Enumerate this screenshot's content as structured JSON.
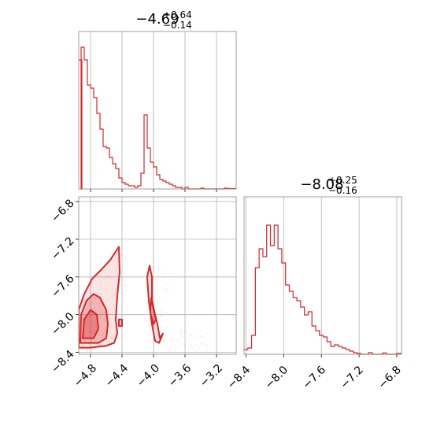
{
  "colors": {
    "accent": "#d62728",
    "grid": "#b0b0b0",
    "frame": "#888888"
  },
  "chart_data": [
    {
      "type": "histogram",
      "panel": "top-left",
      "title": {
        "median": "−4.69",
        "upper": "+0.64",
        "lower": "−0.14"
      },
      "xlim": [
        -4.95,
        -2.95
      ],
      "xticks": [
        -4.8,
        -4.4,
        -4.0,
        -3.6,
        -3.2
      ],
      "show_tick_labels": false,
      "grid": true,
      "bins": [
        [
          -4.95,
          0.82
        ],
        [
          -4.92,
          0.9
        ],
        [
          -4.88,
          0.82
        ],
        [
          -4.84,
          0.66
        ],
        [
          -4.8,
          0.64
        ],
        [
          -4.76,
          0.58
        ],
        [
          -4.72,
          0.48
        ],
        [
          -4.68,
          0.38
        ],
        [
          -4.64,
          0.27
        ],
        [
          -4.6,
          0.26
        ],
        [
          -4.56,
          0.2
        ],
        [
          -4.52,
          0.16
        ],
        [
          -4.48,
          0.13
        ],
        [
          -4.44,
          0.07
        ],
        [
          -4.4,
          0.04
        ],
        [
          -4.36,
          0.03
        ],
        [
          -4.32,
          0.02
        ],
        [
          -4.28,
          0.02
        ],
        [
          -4.24,
          0.01
        ],
        [
          -4.2,
          0.02
        ],
        [
          -4.16,
          0.1
        ],
        [
          -4.12,
          0.47
        ],
        [
          -4.08,
          0.26
        ],
        [
          -4.04,
          0.17
        ],
        [
          -4.0,
          0.14
        ],
        [
          -3.96,
          0.09
        ],
        [
          -3.92,
          0.06
        ],
        [
          -3.88,
          0.05
        ],
        [
          -3.84,
          0.04
        ],
        [
          -3.8,
          0.03
        ],
        [
          -3.76,
          0.02
        ],
        [
          -3.72,
          0.01
        ],
        [
          -3.68,
          0.01
        ],
        [
          -3.6,
          0.01
        ],
        [
          -3.4,
          0.005
        ],
        [
          -3.1,
          0.005
        ]
      ],
      "bin_width": 0.04
    },
    {
      "type": "contour",
      "panel": "bottom-left",
      "xlim": [
        -4.95,
        -2.95
      ],
      "ylim": [
        -8.42,
        -6.75
      ],
      "xticks": [
        -4.8,
        -4.4,
        -4.0,
        -3.6,
        -3.2
      ],
      "xtick_labels": [
        "−4.8",
        "−4.4",
        "−4.0",
        "−3.6",
        "−3.2"
      ],
      "yticks": [
        -6.8,
        -7.2,
        -7.6,
        -8.0,
        -8.4
      ],
      "ytick_labels": [
        "−6.8",
        "−7.2",
        "−7.6",
        "−8.0",
        "−8.4"
      ],
      "grid": true,
      "contours": [
        {
          "level": "outer",
          "polygon": [
            [
              -4.95,
              -8.35
            ],
            [
              -4.95,
              -7.95
            ],
            [
              -4.88,
              -7.78
            ],
            [
              -4.78,
              -7.62
            ],
            [
              -4.66,
              -7.52
            ],
            [
              -4.55,
              -7.42
            ],
            [
              -4.44,
              -7.28
            ],
            [
              -4.43,
              -7.55
            ],
            [
              -4.46,
              -7.8
            ],
            [
              -4.48,
              -8.05
            ],
            [
              -4.46,
              -8.2
            ],
            [
              -4.5,
              -8.3
            ],
            [
              -4.6,
              -8.33
            ],
            [
              -4.8,
              -8.35
            ]
          ]
        },
        {
          "level": "middle",
          "polygon": [
            [
              -4.93,
              -8.3
            ],
            [
              -4.92,
              -8.0
            ],
            [
              -4.85,
              -7.85
            ],
            [
              -4.76,
              -7.78
            ],
            [
              -4.68,
              -7.82
            ],
            [
              -4.6,
              -7.95
            ],
            [
              -4.58,
              -8.1
            ],
            [
              -4.6,
              -8.25
            ],
            [
              -4.7,
              -8.3
            ]
          ]
        },
        {
          "level": "inner",
          "polygon": [
            [
              -4.9,
              -8.25
            ],
            [
              -4.88,
              -8.05
            ],
            [
              -4.8,
              -7.95
            ],
            [
              -4.72,
              -8.0
            ],
            [
              -4.7,
              -8.15
            ],
            [
              -4.76,
              -8.25
            ]
          ]
        },
        {
          "level": "outer",
          "polygon": [
            [
              -4.05,
              -7.48
            ],
            [
              -4.02,
              -7.6
            ],
            [
              -4.02,
              -7.85
            ],
            [
              -3.98,
              -8.0
            ],
            [
              -3.95,
              -8.1
            ],
            [
              -3.92,
              -8.25
            ],
            [
              -3.88,
              -8.2
            ],
            [
              -3.93,
              -8.3
            ],
            [
              -3.98,
              -8.28
            ],
            [
              -4.02,
              -8.1
            ],
            [
              -4.06,
              -7.85
            ],
            [
              -4.08,
              -7.6
            ]
          ]
        },
        {
          "level": "middle",
          "polygon": [
            [
              -4.03,
              -7.82
            ],
            [
              -4.0,
              -7.95
            ],
            [
              -3.97,
              -8.05
            ],
            [
              -4.0,
              -8.1
            ],
            [
              -4.04,
              -7.98
            ]
          ]
        },
        {
          "level": "island",
          "polygon": [
            [
              -4.44,
              -8.05
            ],
            [
              -4.4,
              -8.05
            ],
            [
              -4.4,
              -8.12
            ],
            [
              -4.44,
              -8.12
            ]
          ]
        }
      ]
    },
    {
      "type": "histogram",
      "panel": "bottom-right",
      "title": {
        "median": "−8.08",
        "upper": "+0.25",
        "lower": "−0.16"
      },
      "xlim": [
        -8.42,
        -6.75
      ],
      "xticks": [
        -8.4,
        -8.0,
        -7.6,
        -7.2,
        -6.8
      ],
      "xtick_labels": [
        "−8.4",
        "−8.0",
        "−7.6",
        "−7.2",
        "−6.8"
      ],
      "grid": true,
      "bins": [
        [
          -8.42,
          0.03
        ],
        [
          -8.38,
          0.04
        ],
        [
          -8.34,
          0.12
        ],
        [
          -8.3,
          0.55
        ],
        [
          -8.26,
          0.67
        ],
        [
          -8.22,
          0.62
        ],
        [
          -8.18,
          0.82
        ],
        [
          -8.14,
          0.69
        ],
        [
          -8.1,
          0.82
        ],
        [
          -8.06,
          0.67
        ],
        [
          -8.02,
          0.58
        ],
        [
          -7.98,
          0.44
        ],
        [
          -7.94,
          0.4
        ],
        [
          -7.9,
          0.36
        ],
        [
          -7.86,
          0.34
        ],
        [
          -7.82,
          0.3
        ],
        [
          -7.78,
          0.25
        ],
        [
          -7.74,
          0.27
        ],
        [
          -7.7,
          0.18
        ],
        [
          -7.66,
          0.15
        ],
        [
          -7.62,
          0.12
        ],
        [
          -7.58,
          0.11
        ],
        [
          -7.54,
          0.08
        ],
        [
          -7.5,
          0.05
        ],
        [
          -7.46,
          0.06
        ],
        [
          -7.42,
          0.05
        ],
        [
          -7.38,
          0.04
        ],
        [
          -7.34,
          0.03
        ],
        [
          -7.3,
          0.02
        ],
        [
          -7.26,
          0.01
        ],
        [
          -7.22,
          0.005
        ],
        [
          -7.1,
          0.01
        ],
        [
          -6.95,
          0.008
        ],
        [
          -6.8,
          0.005
        ]
      ],
      "bin_width": 0.04
    }
  ]
}
